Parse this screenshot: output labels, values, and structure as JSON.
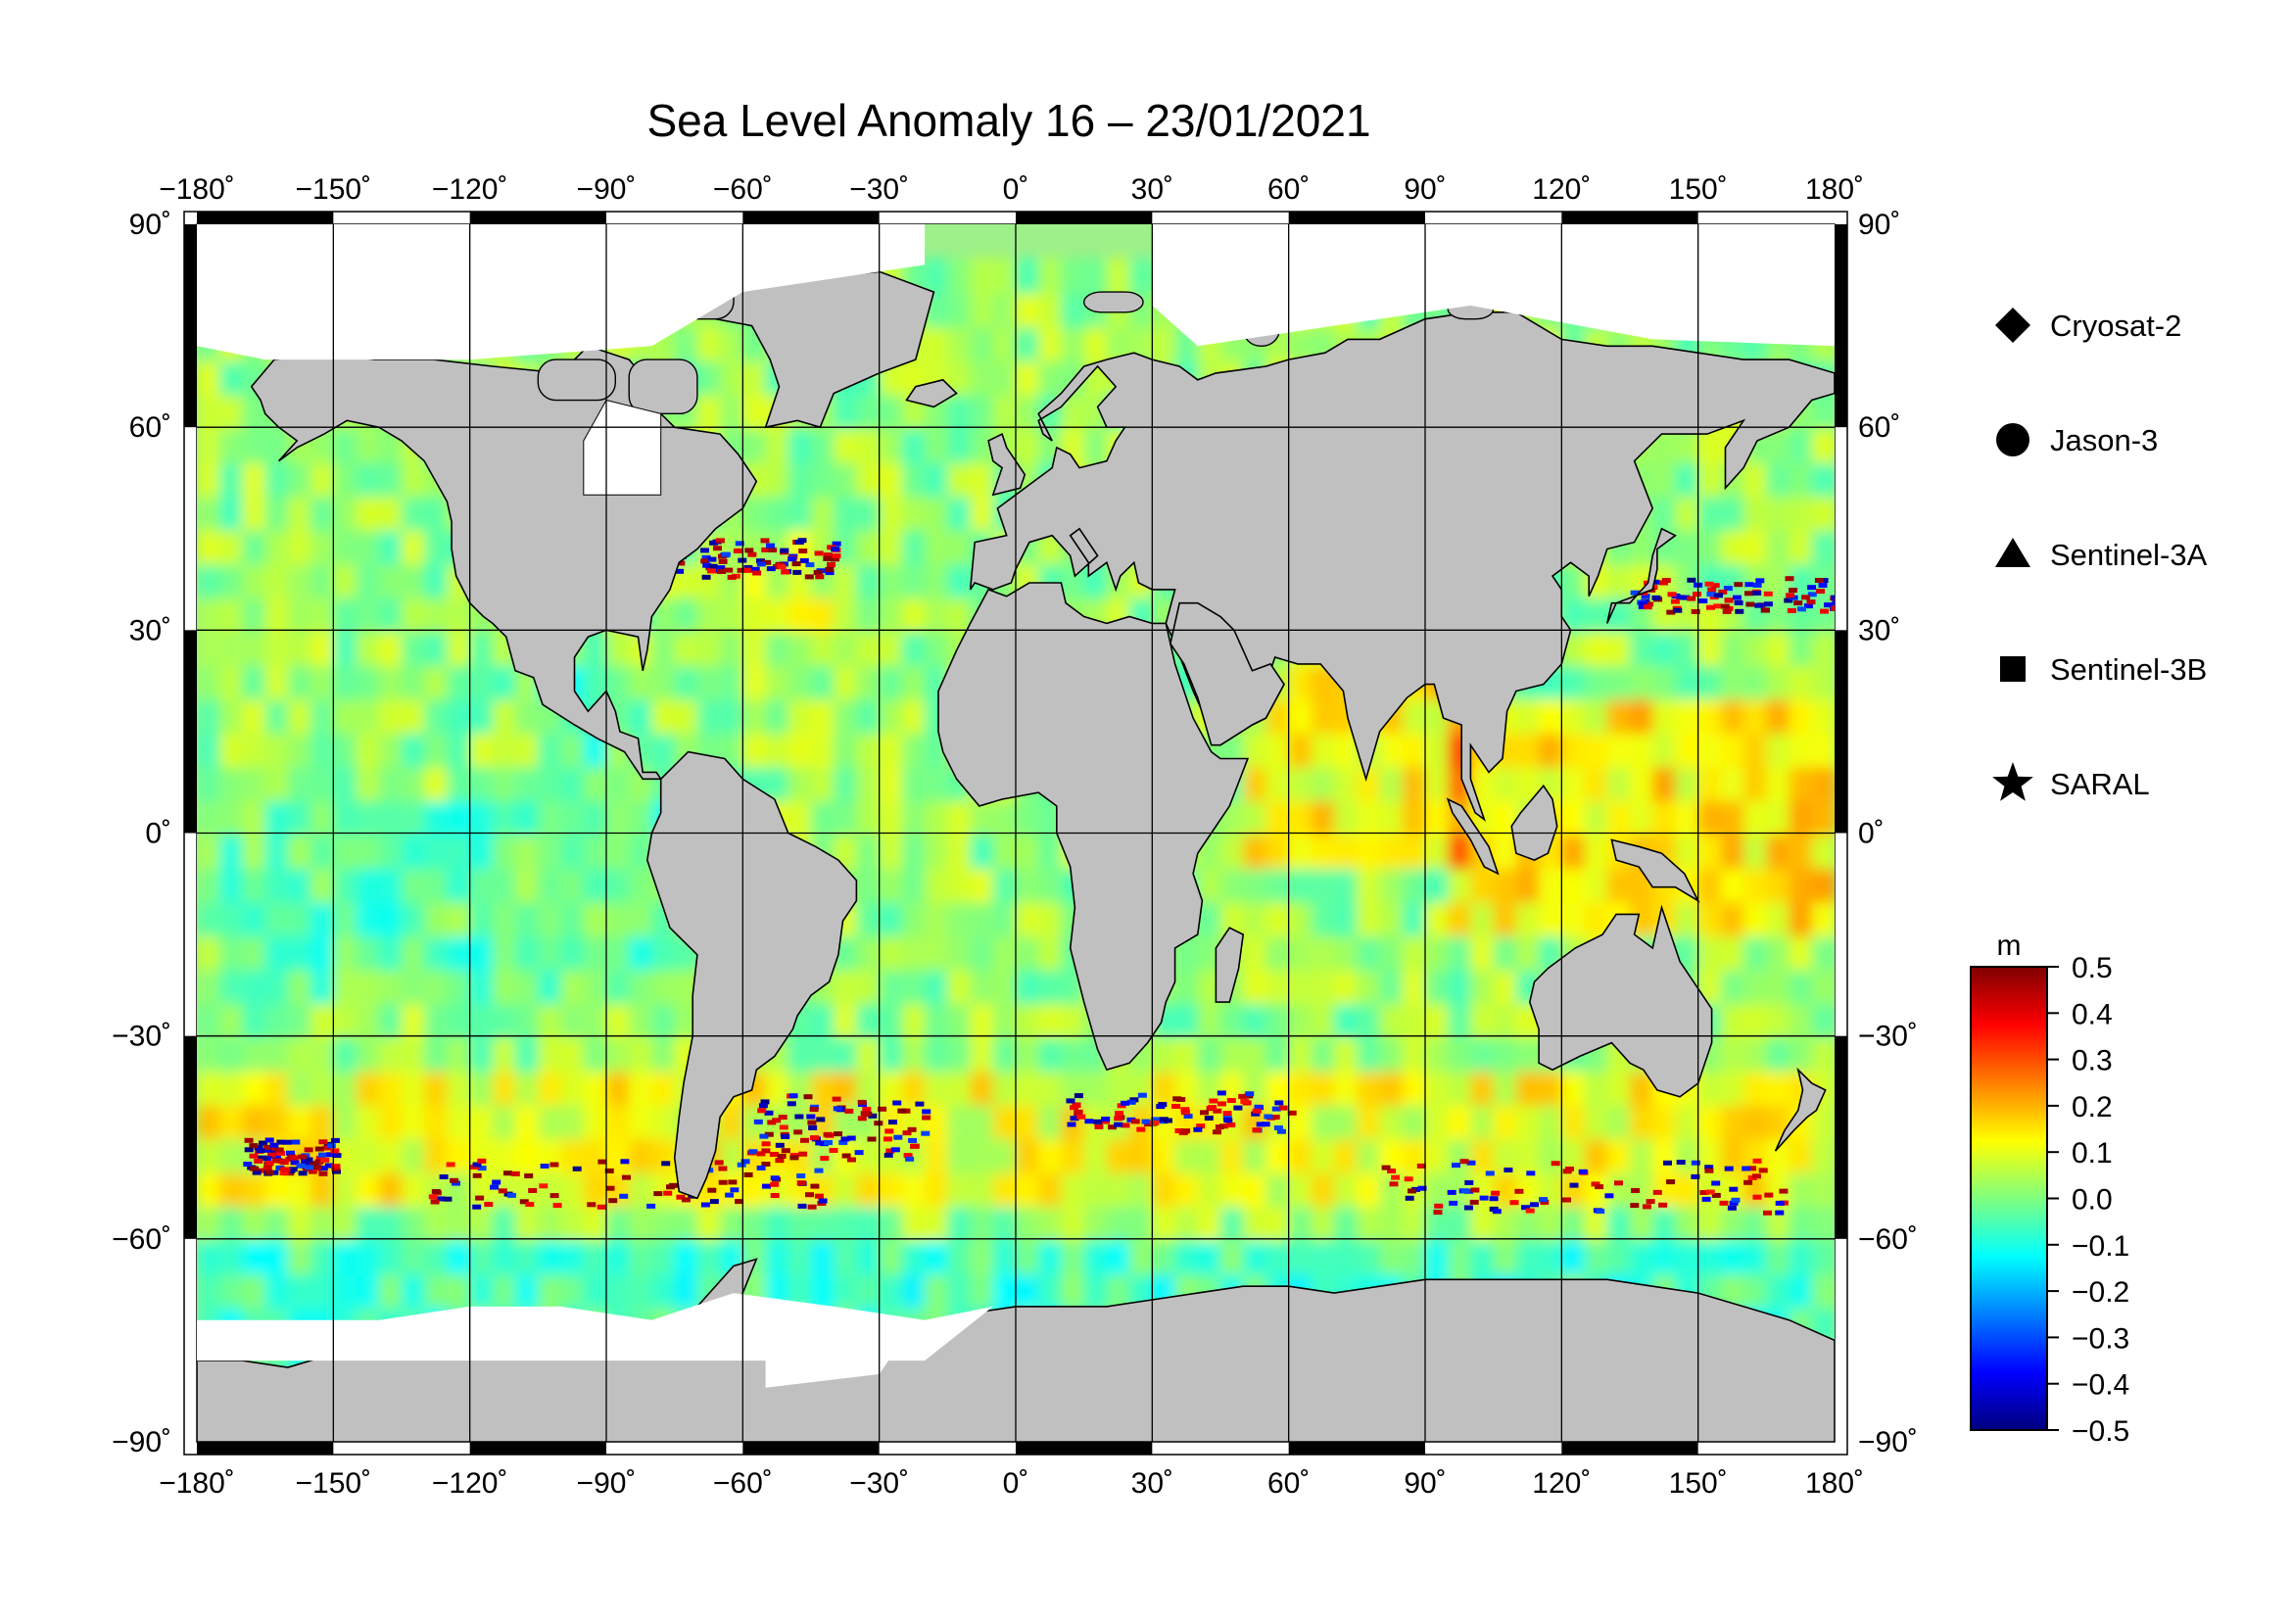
{
  "title": "Sea Level Anomaly 16 – 23/01/2021",
  "map": {
    "projection": "equirectangular",
    "lon_range": [
      -180,
      180
    ],
    "lat_range": [
      -90,
      90
    ],
    "lon_ticks": [
      "−180˚",
      "−150˚",
      "−120˚",
      "−90˚",
      "−60˚",
      "−30˚",
      "0˚",
      "30˚",
      "60˚",
      "90˚",
      "120˚",
      "150˚",
      "180˚"
    ],
    "lat_ticks_left": [
      "90˚",
      "60˚",
      "30˚",
      "0˚",
      "−30˚",
      "−60˚",
      "−90˚"
    ],
    "lat_ticks_right": [
      "90˚",
      "60˚",
      "30˚",
      "0˚",
      "−30˚",
      "−60˚",
      "−90˚"
    ],
    "grid": true,
    "land_color": "#c0c0c0",
    "no_data_color": "#ffffff"
  },
  "legend": {
    "placement": "right",
    "items": [
      {
        "label": "Cryosat-2",
        "symbol": "diamond"
      },
      {
        "label": "Jason-3",
        "symbol": "circle"
      },
      {
        "label": "Sentinel-3A",
        "symbol": "triangle"
      },
      {
        "label": "Sentinel-3B",
        "symbol": "square"
      },
      {
        "label": "SARAL",
        "symbol": "star"
      }
    ]
  },
  "colorbar": {
    "unit": "m",
    "min": -0.5,
    "max": 0.5,
    "ticks": [
      "0.5",
      "0.4",
      "0.3",
      "0.2",
      "0.1",
      "0.0",
      "−0.1",
      "−0.2",
      "−0.3",
      "−0.4",
      "−0.5"
    ],
    "colors": [
      "#00007f",
      "#0000ff",
      "#007fff",
      "#00ffff",
      "#7fff7f",
      "#ffff00",
      "#ff7f00",
      "#ff0000",
      "#7f0000"
    ]
  }
}
